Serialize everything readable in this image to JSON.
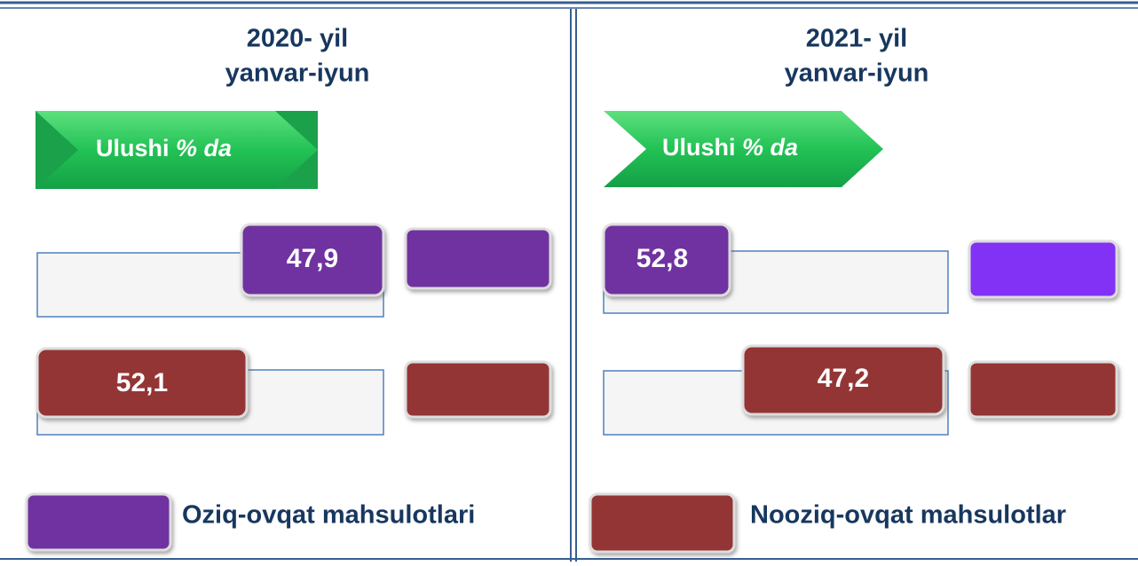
{
  "panels": [
    {
      "title": "2020- yil",
      "subtitle": "yanvar-iyun",
      "badge": "Ulushi",
      "badge_unit": "% da",
      "food": "47,9",
      "nonfood": "52,1"
    },
    {
      "title": "2021- yil",
      "subtitle": "yanvar-iyun",
      "badge": "Ulushi",
      "badge_unit": "% da",
      "food": "52,8",
      "nonfood": "47,2"
    }
  ],
  "legend": [
    "Oziq-ovqat mahsulotlari",
    "Nooziq-ovqat mahsulotlar"
  ]
}
